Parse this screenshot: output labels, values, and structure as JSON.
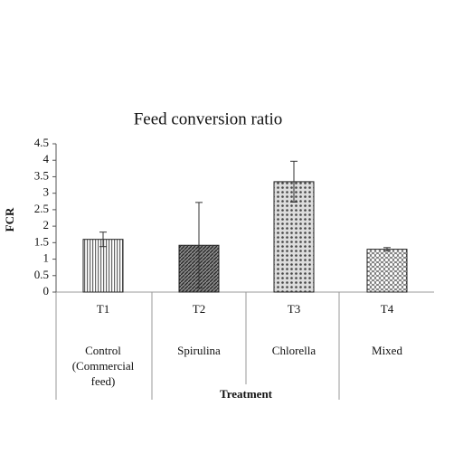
{
  "chart_data": {
    "type": "bar",
    "title": "Feed conversion ratio",
    "categories": [
      "T1",
      "T2",
      "T3",
      "T4"
    ],
    "category_groups": [
      "Control (Commercial feed)",
      "Spirulina",
      "Chlorella",
      "Mixed"
    ],
    "values": [
      1.6,
      1.42,
      3.35,
      1.3
    ],
    "errors": [
      0.22,
      1.3,
      0.62,
      0.05
    ],
    "y_label": "FCR",
    "x_label": "Treatment",
    "ylim": [
      0,
      4.5
    ],
    "yticks": [
      0,
      0.5,
      1,
      1.5,
      2,
      2.5,
      3,
      3.5,
      4,
      4.5
    ]
  }
}
